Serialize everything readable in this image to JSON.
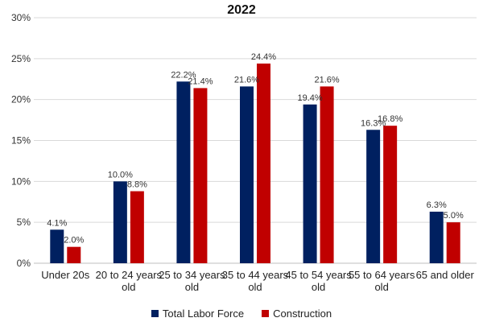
{
  "chart_data": {
    "type": "bar",
    "title": "2022",
    "categories": [
      "Under 20s",
      "20 to 24 years old",
      "25 to 34 years old",
      "35 to 44 years old",
      "45 to 54 years old",
      "55 to 64 years old",
      "65 and older"
    ],
    "category_lines": [
      [
        "Under 20s"
      ],
      [
        "20 to 24 years",
        "old"
      ],
      [
        "25 to 34 years",
        "old"
      ],
      [
        "35 to 44 years",
        "old"
      ],
      [
        "45 to 54 years",
        "old"
      ],
      [
        "55 to 64 years",
        "old"
      ],
      [
        "65 and older"
      ]
    ],
    "series": [
      {
        "name": "Total Labor Force",
        "color": "#002060",
        "values": [
          4.1,
          10.0,
          22.2,
          21.6,
          19.4,
          16.3,
          6.3
        ],
        "labels": [
          "4.1%",
          "10.0%",
          "22.2%",
          "21.6%",
          "19.4%",
          "16.3%",
          "6.3%"
        ]
      },
      {
        "name": "Construction",
        "color": "#C00000",
        "values": [
          2.0,
          8.8,
          21.4,
          24.4,
          21.6,
          16.8,
          5.0
        ],
        "labels": [
          "2.0%",
          "8.8%",
          "21.4%",
          "24.4%",
          "21.6%",
          "16.8%",
          "5.0%"
        ]
      }
    ],
    "y_ticks": [
      "0%",
      "5%",
      "10%",
      "15%",
      "20%",
      "25%",
      "30%"
    ],
    "ylim": [
      0,
      30
    ],
    "xlabel": "",
    "ylabel": "",
    "grid": true,
    "legend_position": "bottom"
  }
}
